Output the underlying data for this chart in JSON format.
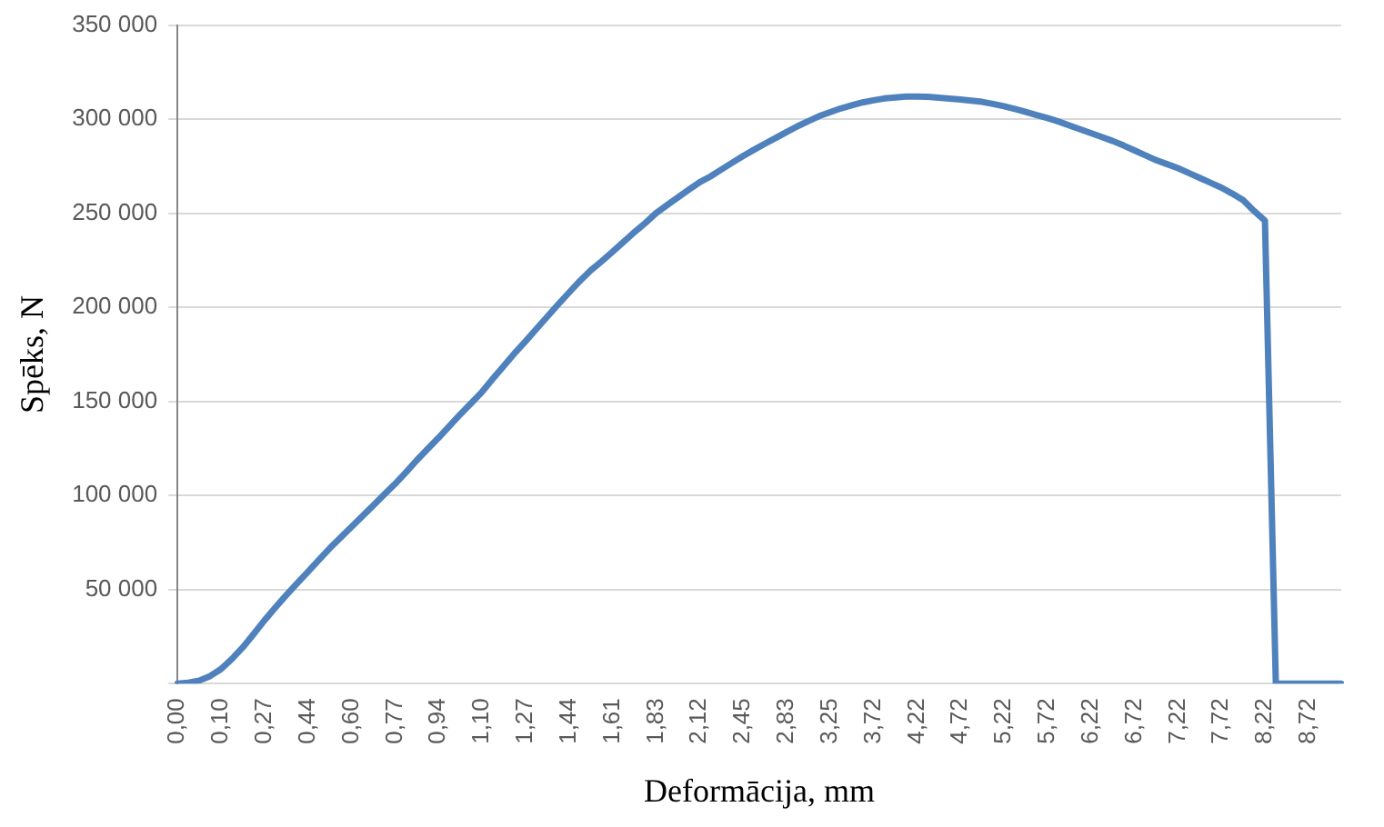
{
  "chart_data": {
    "type": "line",
    "xlabel": "Deformācija, mm",
    "ylabel": "Spēks, N",
    "categories": [
      "0,00",
      null,
      null,
      null,
      "0,10",
      null,
      null,
      null,
      "0,27",
      null,
      null,
      null,
      "0,44",
      null,
      null,
      null,
      "0,60",
      null,
      null,
      null,
      "0,77",
      null,
      null,
      null,
      "0,94",
      null,
      null,
      null,
      "1,10",
      null,
      null,
      null,
      "1,27",
      null,
      null,
      null,
      "1,44",
      null,
      null,
      null,
      "1,61",
      null,
      null,
      null,
      "1,83",
      null,
      null,
      null,
      "2,12",
      null,
      null,
      null,
      "2,45",
      null,
      null,
      null,
      "2,83",
      null,
      null,
      null,
      "3,25",
      null,
      null,
      null,
      "3,72",
      null,
      null,
      null,
      "4,22",
      null,
      null,
      null,
      "4,72",
      null,
      null,
      null,
      "5,22",
      null,
      null,
      null,
      "5,72",
      null,
      null,
      null,
      "6,22",
      null,
      null,
      null,
      "6,72",
      null,
      null,
      null,
      "7,22",
      null,
      null,
      null,
      "7,72",
      null,
      null,
      null,
      "8,22",
      null,
      null,
      null,
      "8,72",
      null,
      null,
      null
    ],
    "series": [
      {
        "color": "#4f81bd",
        "values": [
          0,
          500,
          1600,
          4000,
          7700,
          13100,
          19200,
          26300,
          33600,
          40400,
          47000,
          53300,
          59500,
          65700,
          71900,
          77600,
          83300,
          89000,
          94700,
          100400,
          106100,
          112200,
          118700,
          124700,
          130600,
          136900,
          143100,
          149000,
          155000,
          162000,
          168800,
          175600,
          181900,
          188500,
          195000,
          201500,
          207800,
          214000,
          219600,
          224400,
          229500,
          234700,
          239800,
          244700,
          250000,
          254200,
          258300,
          262400,
          266400,
          269500,
          273200,
          276800,
          280400,
          283700,
          286900,
          290000,
          293100,
          296200,
          298900,
          301600,
          303700,
          305700,
          307400,
          308900,
          310000,
          311000,
          311500,
          312000,
          312000,
          311900,
          311400,
          310900,
          310400,
          309800,
          309200,
          308100,
          306900,
          305400,
          303800,
          302200,
          300600,
          298800,
          296700,
          294600,
          292600,
          290500,
          288400,
          286000,
          283400,
          280800,
          278200,
          276100,
          274000,
          271400,
          268800,
          266200,
          263600,
          260400,
          256900,
          251200,
          246000,
          0,
          0,
          0,
          0,
          0,
          0,
          0
        ]
      }
    ],
    "ylim": [
      0,
      350000
    ],
    "yticks": [
      {
        "value": 0,
        "label": null
      },
      {
        "value": 50000,
        "label": "50 000"
      },
      {
        "value": 100000,
        "label": "100 000"
      },
      {
        "value": 150000,
        "label": "150 000"
      },
      {
        "value": 200000,
        "label": "200 000"
      },
      {
        "value": 250000,
        "label": "250 000"
      },
      {
        "value": 300000,
        "label": "300 000"
      },
      {
        "value": 350000,
        "label": "350 000"
      }
    ],
    "grid": "y",
    "legend": false,
    "marker": "none",
    "line_style": "solid"
  }
}
